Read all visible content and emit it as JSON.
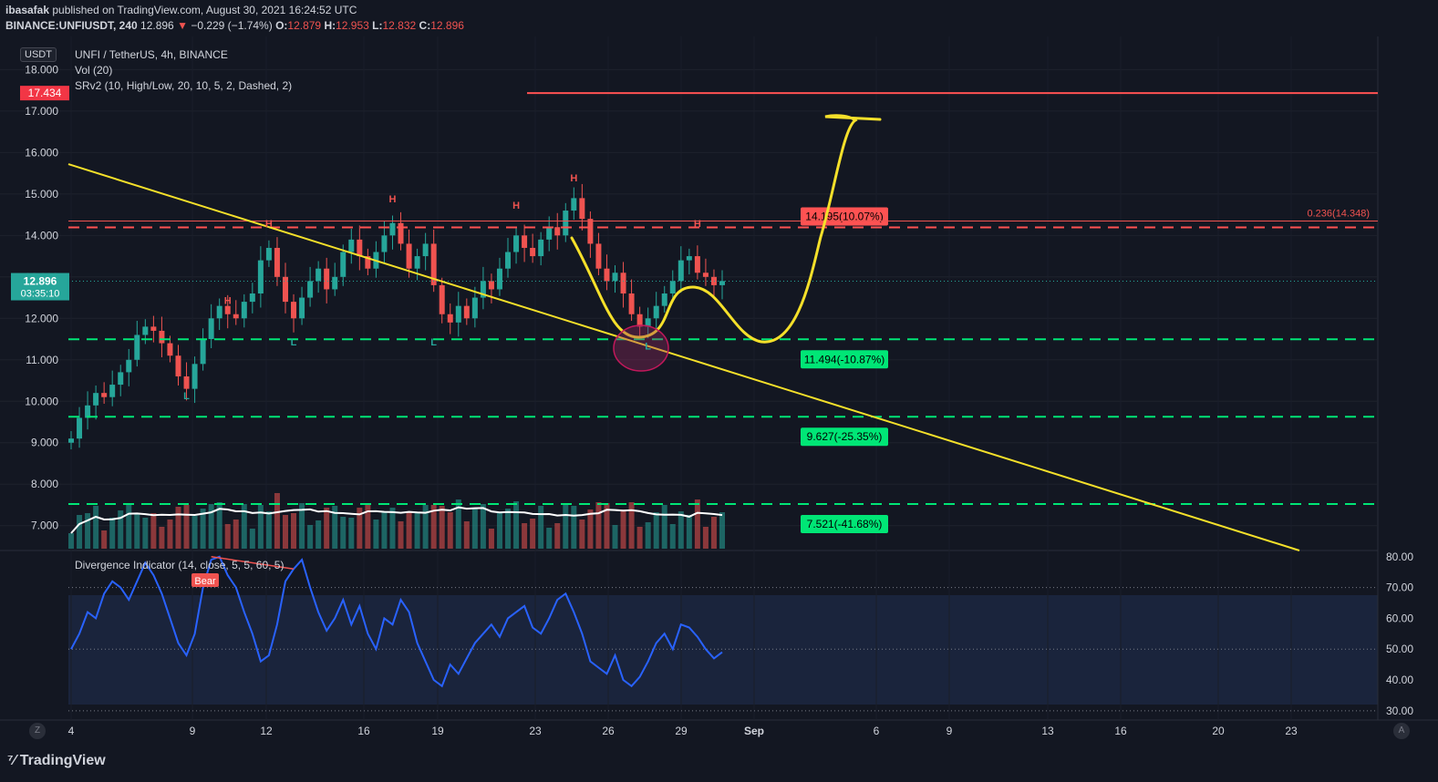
{
  "header": {
    "line1_user": "ibasafak",
    "line1_text": " published on TradingView.com, August 30, 2021 16:24:52 UTC",
    "symbol": "BINANCE:UNFIUSDT, 240",
    "last": "12.896",
    "change_arrow": "▼",
    "change": "−0.229 (−1.74%)",
    "o_label": "O:",
    "o": "12.879",
    "h_label": "H:",
    "h": "12.953",
    "l_label": "L:",
    "l": "12.832",
    "c_label": "C:",
    "c": "12.896"
  },
  "legend": {
    "title": "UNFI / TetherUS, 4h, BINANCE",
    "vol": "Vol (20)",
    "srv2": "SRv2 (10, High/Low, 20, 10, 5, 2, Dashed, 2)",
    "divergence": "Divergence Indicator (14, close, 5, 5, 60, 5)"
  },
  "currency_button": "USDT",
  "footer_brand": "TradingView",
  "corner_left": "Z",
  "corner_right": "A",
  "colors": {
    "background": "#131722",
    "up": "#26a69a",
    "down": "#ef5350",
    "trend": "#f5e02a",
    "rsi": "#2962ff",
    "support": "#00e676",
    "resistance": "#ff5252"
  },
  "chart_data": {
    "type": "line",
    "title": "UNFI / TetherUS, 4h, BINANCE",
    "price_axis": {
      "ticks": [
        "18.000",
        "17.000",
        "16.000",
        "15.000",
        "14.000",
        "13.000",
        "12.000",
        "11.000",
        "10.000",
        "9.000",
        "8.000",
        "7.000"
      ],
      "tick_values": [
        18,
        17,
        16,
        15,
        14,
        13,
        12,
        11,
        10,
        9,
        8,
        7
      ],
      "ylim": [
        6.4,
        18.8
      ]
    },
    "x_axis": {
      "ticks": [
        "4",
        "9",
        "12",
        "16",
        "19",
        "23",
        "26",
        "29",
        "Sep",
        "6",
        "9",
        "13",
        "16",
        "20",
        "23"
      ]
    },
    "price_badge": {
      "value": "12.896",
      "countdown": "03:35:10"
    },
    "target_badge": "17.434",
    "target_level": 17.434,
    "series": [
      {
        "approx_closes": [
          9.1,
          9.6,
          9.9,
          10.2,
          10.1,
          10.4,
          10.7,
          11.0,
          11.6,
          11.8,
          11.7,
          11.4,
          11.1,
          10.6,
          10.3,
          10.9,
          11.5,
          12.0,
          12.3,
          12.1,
          12.0,
          12.4,
          12.6,
          13.4,
          13.7,
          13.0,
          12.4,
          12.0,
          12.5,
          12.9,
          13.2,
          12.7,
          13.0,
          13.6,
          13.9,
          13.5,
          13.2,
          13.6,
          14.0,
          14.3,
          13.8,
          13.2,
          13.5,
          13.8,
          12.8,
          12.1,
          11.9,
          12.3,
          12.0,
          12.5,
          12.9,
          12.7,
          13.2,
          13.6,
          14.0,
          13.7,
          13.5,
          13.9,
          14.2,
          14.0,
          14.6,
          14.9,
          14.4,
          13.8,
          13.2,
          12.9,
          13.1,
          12.6,
          12.1,
          11.8,
          12.0,
          12.3,
          12.6,
          12.9,
          13.4,
          13.5,
          13.1,
          13.0,
          12.8,
          12.9
        ],
        "note": ""
      }
    ],
    "levels": [
      {
        "label": "14.195(10.07%)",
        "value": 14.195,
        "kind": "resistance"
      },
      {
        "label": "11.494(-10.87%)",
        "value": 11.494,
        "kind": "support"
      },
      {
        "label": "9.627(-25.35%)",
        "value": 9.627,
        "kind": "support"
      },
      {
        "label": "7.521(-41.68%)",
        "value": 7.521,
        "kind": "support"
      }
    ],
    "fib_label": "0.236(14.348)",
    "fib_value": 14.348,
    "pivot_labels": [
      {
        "text": "H",
        "idx": 19,
        "price": 12.35
      },
      {
        "text": "L",
        "idx": 14,
        "price": 10.05
      },
      {
        "text": "H",
        "idx": 24,
        "price": 14.2
      },
      {
        "text": "L",
        "idx": 27,
        "price": 11.35
      },
      {
        "text": "H",
        "idx": 39,
        "price": 14.8
      },
      {
        "text": "L",
        "idx": 44,
        "price": 11.35
      },
      {
        "text": "H",
        "idx": 54,
        "price": 14.65
      },
      {
        "text": "H",
        "idx": 61,
        "price": 15.3
      },
      {
        "text": "L",
        "idx": 70,
        "price": 11.25
      },
      {
        "text": "H",
        "idx": 76,
        "price": 14.2
      }
    ],
    "divergence_label": "Bear",
    "osc_axis": {
      "ticks": [
        "80.00",
        "70.00",
        "60.00",
        "50.00",
        "40.00",
        "30.00"
      ],
      "tick_values": [
        80,
        70,
        60,
        50,
        40,
        30
      ],
      "ylim": [
        27,
        82
      ]
    },
    "oscillator": [
      50,
      55,
      62,
      60,
      68,
      72,
      70,
      66,
      72,
      78,
      74,
      68,
      60,
      52,
      48,
      55,
      70,
      79,
      80,
      74,
      70,
      62,
      55,
      46,
      48,
      58,
      72,
      76,
      79,
      70,
      62,
      56,
      60,
      66,
      58,
      64,
      55,
      50,
      60,
      58,
      66,
      62,
      52,
      46,
      40,
      38,
      45,
      42,
      47,
      52,
      55,
      58,
      54,
      60,
      62,
      64,
      57,
      55,
      60,
      66,
      68,
      62,
      55,
      46,
      44,
      42,
      48,
      40,
      38,
      41,
      46,
      52,
      55,
      50,
      58,
      57,
      54,
      50,
      47,
      49
    ]
  }
}
